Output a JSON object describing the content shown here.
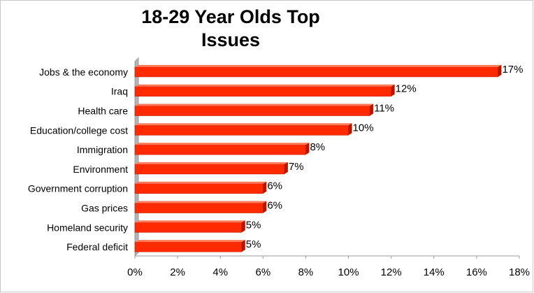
{
  "chart_data": {
    "type": "bar",
    "orientation": "horizontal",
    "title": "18-29 Year Olds Top Issues",
    "categories": [
      "Jobs & the economy",
      "Iraq",
      "Health care",
      "Education/college cost",
      "Immigration",
      "Environment",
      "Government corruption",
      "Gas prices",
      "Homeland security",
      "Federal deficit"
    ],
    "values": [
      17,
      12,
      11,
      10,
      8,
      7,
      6,
      6,
      5,
      5
    ],
    "value_labels": [
      "17%",
      "12%",
      "11%",
      "10%",
      "8%",
      "7%",
      "6%",
      "6%",
      "5%",
      "5%"
    ],
    "xlim": [
      0,
      18
    ],
    "x_ticks": [
      0,
      2,
      4,
      6,
      8,
      10,
      12,
      14,
      16,
      18
    ],
    "x_tick_labels": [
      "0%",
      "2%",
      "4%",
      "6%",
      "8%",
      "10%",
      "12%",
      "14%",
      "16%",
      "18%"
    ],
    "xlabel": "",
    "ylabel": "",
    "grid": false,
    "legend": "none",
    "colors": {
      "bar": "#ff2a00",
      "bar_top": "#ff7a5a",
      "bar_end": "#b01800",
      "wall": "#b5b5b5"
    }
  }
}
